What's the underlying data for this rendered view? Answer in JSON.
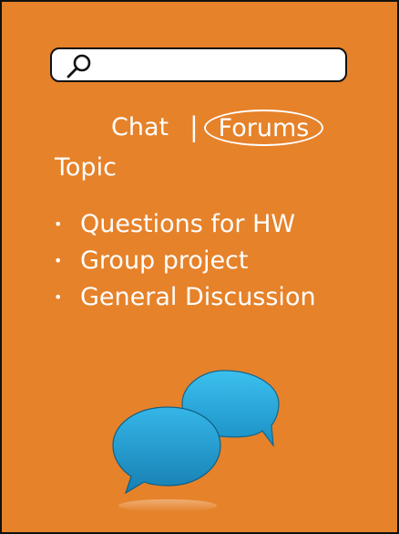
{
  "search": {
    "value": "",
    "placeholder": "",
    "icon": "search-icon"
  },
  "tabs": {
    "chat_label": "Chat",
    "separator": "|",
    "forums_label": "Forums",
    "active": "Forums"
  },
  "topic": {
    "heading": "Topic",
    "items": [
      {
        "label": "Questions for  HW"
      },
      {
        "label": "Group project"
      },
      {
        "label": "General Discussion"
      }
    ]
  },
  "illustration": {
    "icon": "chat-bubbles-icon"
  },
  "colors": {
    "background": "#e6822a",
    "text": "#ffffff",
    "bubble": "#29a9dd",
    "border": "#111111"
  }
}
